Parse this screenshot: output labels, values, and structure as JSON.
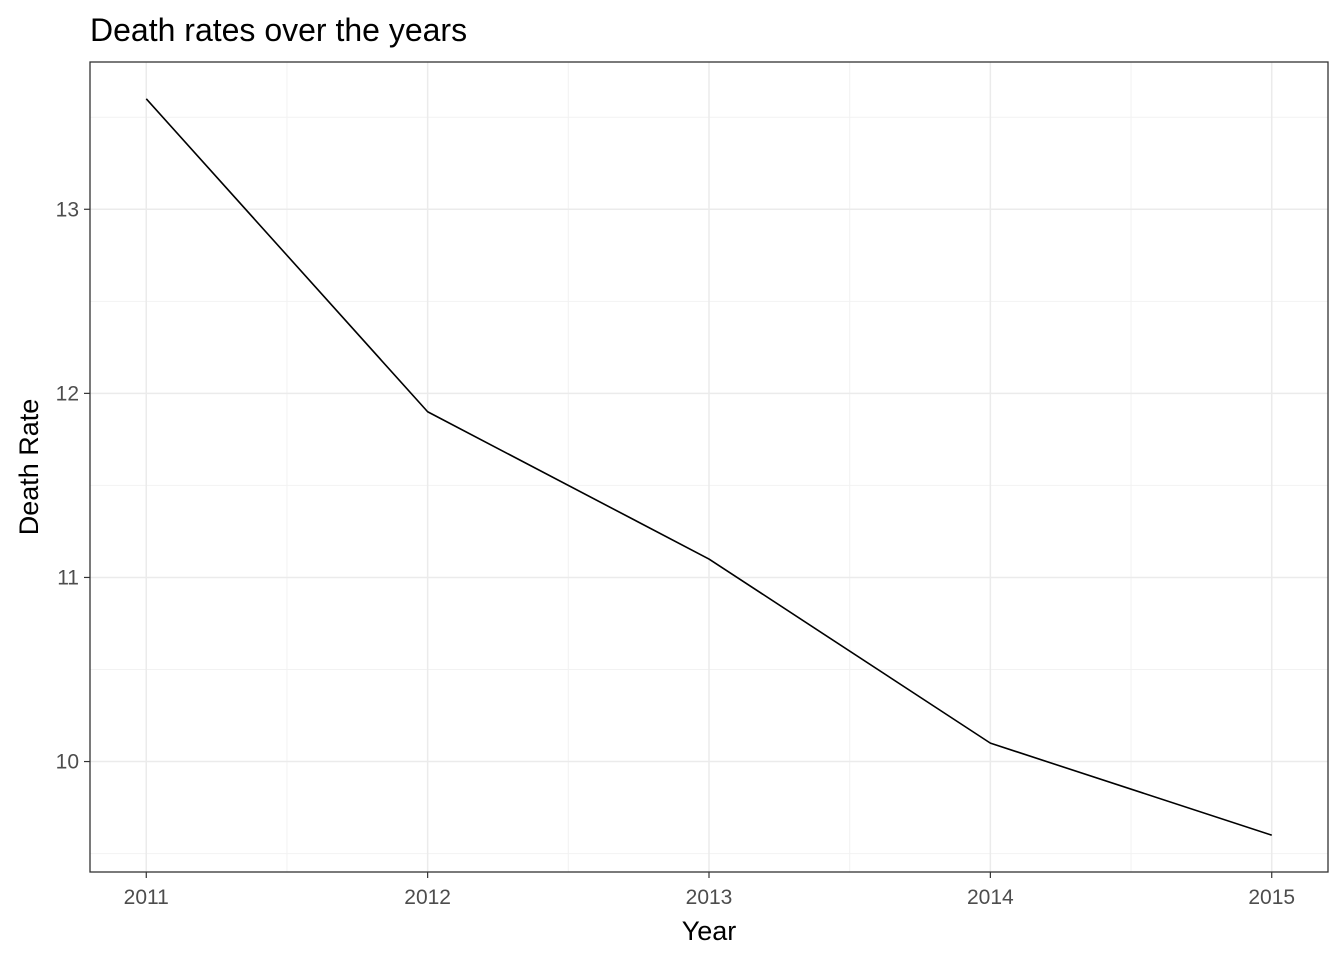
{
  "chart_data": {
    "type": "line",
    "title": "Death rates over the years",
    "xlabel": "Year",
    "ylabel": "Death Rate",
    "x": [
      2011,
      2012,
      2013,
      2014,
      2015
    ],
    "series": [
      {
        "values": [
          13.6,
          11.9,
          11.1,
          10.1,
          9.6
        ]
      }
    ],
    "x_ticks": [
      "2011",
      "2012",
      "2013",
      "2014",
      "2015"
    ],
    "y_ticks": [
      "10",
      "11",
      "12",
      "13"
    ],
    "xlim": [
      2010.8,
      2015.2
    ],
    "ylim": [
      9.4,
      13.8
    ],
    "grid": true,
    "legend": "none",
    "colors": {
      "line": "#000000",
      "panel_border": "#333333",
      "grid_major": "#ebebeb",
      "grid_minor": "#f2f2f2",
      "tick_label": "#4d4d4d"
    }
  }
}
